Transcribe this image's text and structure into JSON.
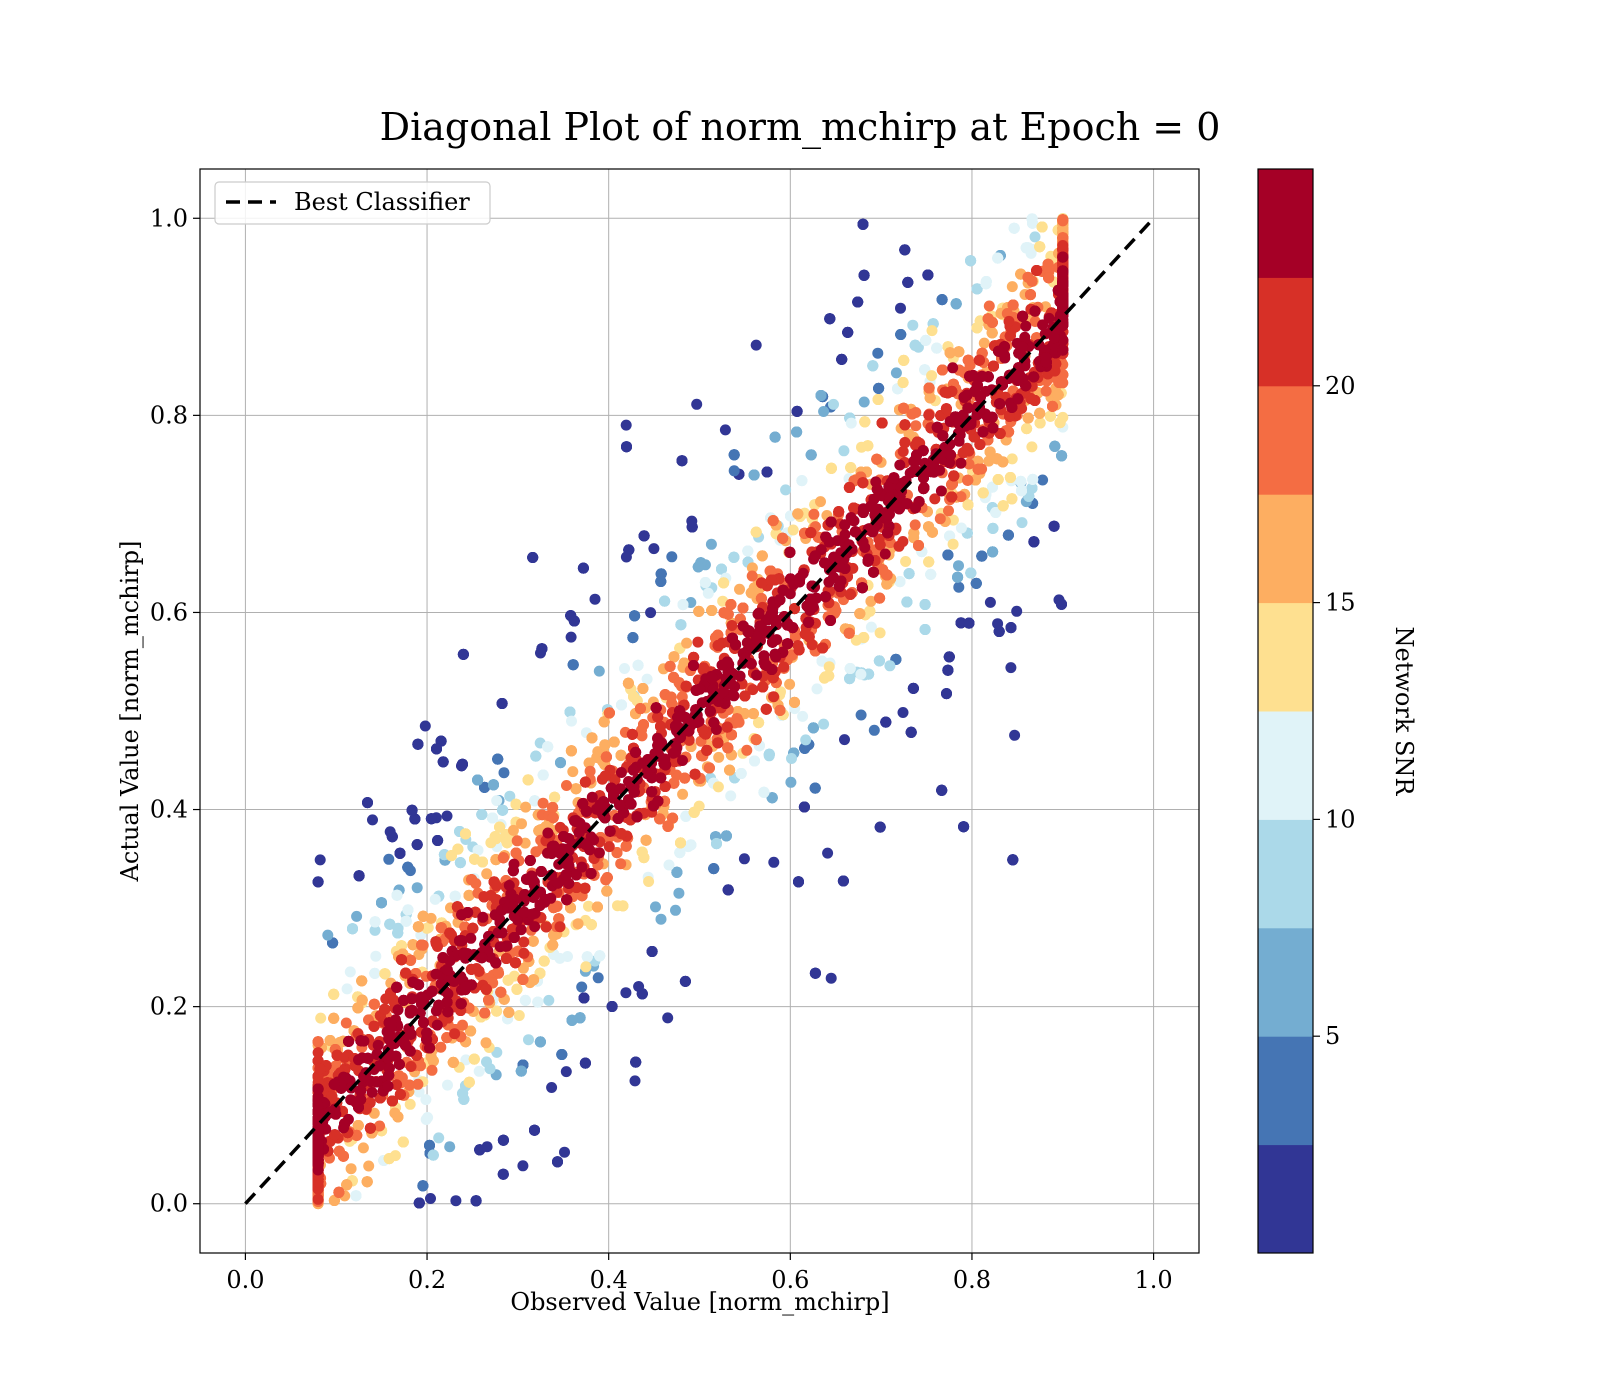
{
  "chart_data": {
    "type": "scatter",
    "title": "Diagonal Plot of norm_mchirp at Epoch = 0",
    "xlabel": "Observed Value [norm_mchirp]",
    "ylabel": "Actual Value [norm_mchirp]",
    "xlim": [
      -0.05,
      1.05
    ],
    "ylim": [
      -0.05,
      1.05
    ],
    "xticks": [
      "0.0",
      "0.2",
      "0.4",
      "0.6",
      "0.8",
      "1.0"
    ],
    "yticks": [
      "0.0",
      "0.2",
      "0.4",
      "0.6",
      "0.8",
      "1.0"
    ],
    "grid": true,
    "legend": {
      "placement": "top-left",
      "entries": [
        "Best Classifier"
      ]
    },
    "reference_line": {
      "name": "Best Classifier",
      "x": [
        0.0,
        1.0
      ],
      "y": [
        0.0,
        1.0
      ],
      "style": "dashed",
      "color": "#000000"
    },
    "colorbar": {
      "label": "Network SNR",
      "range": [
        0,
        25
      ],
      "ticks": [
        "5",
        "10",
        "15",
        "20"
      ],
      "colors": [
        "#313695",
        "#4575b4",
        "#74add1",
        "#abd9e9",
        "#e0f3f8",
        "#fee090",
        "#fdae61",
        "#f46d43",
        "#d73027",
        "#a50026"
      ]
    },
    "series_description": {
      "x_range": [
        0.08,
        0.9
      ],
      "y_range": [
        0.0,
        1.0
      ],
      "count_rendered": 9000,
      "color_by": "Network SNR"
    }
  }
}
